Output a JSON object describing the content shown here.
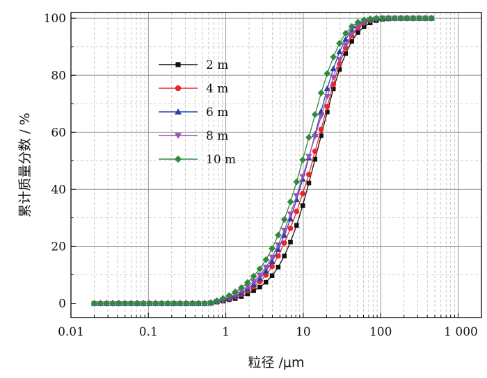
{
  "chart_data": {
    "type": "line",
    "xscale": "log",
    "xlabel": "粒径 /μm",
    "ylabel": "累计质量分数 / %",
    "xlim": [
      0.01,
      2000
    ],
    "ylim": [
      -5,
      102
    ],
    "x_ticks": [
      0.01,
      0.1,
      1,
      10,
      100,
      1000
    ],
    "x_tick_labels": [
      "0.01",
      "0.1",
      "1",
      "10",
      "100",
      "1 000"
    ],
    "y_ticks": [
      0,
      20,
      40,
      60,
      80,
      100
    ],
    "y_tick_labels": [
      "0",
      "20",
      "40",
      "60",
      "80",
      "100"
    ],
    "grid": true,
    "legend_position": "upper-left",
    "x_sample_start": 0.02,
    "x_sample_ratio": 1.2,
    "series": [
      {
        "name": "2 m",
        "color": "#111111",
        "marker": "square",
        "values": [
          0,
          0,
          0,
          0,
          0,
          0,
          0,
          0,
          0,
          0,
          0,
          0,
          0,
          0,
          0,
          0,
          0,
          0,
          0,
          0.1,
          0.4,
          0.8,
          1.2,
          1.7,
          2.4,
          3.3,
          4.4,
          5.7,
          7.4,
          9.7,
          12.7,
          16.6,
          21.5,
          27.3,
          34.3,
          42.2,
          50.5,
          58.8,
          67.1,
          75.2,
          82.0,
          87.6,
          91.9,
          95.0,
          97.0,
          98.4,
          99.2,
          99.6,
          99.8,
          100,
          100,
          100,
          100,
          100,
          100,
          100
        ]
      },
      {
        "name": "4 m",
        "color": "#e8262a",
        "marker": "circle",
        "values": [
          0,
          0,
          0,
          0,
          0,
          0,
          0,
          0,
          0,
          0,
          0,
          0,
          0,
          0,
          0,
          0,
          0,
          0,
          0,
          0.1,
          0.5,
          1.0,
          1.6,
          2.3,
          3.2,
          4.4,
          5.8,
          7.6,
          9.9,
          12.9,
          16.6,
          21.1,
          26.3,
          32.2,
          38.5,
          45.2,
          53.3,
          61.0,
          69.0,
          76.8,
          84.0,
          89.6,
          93.8,
          96.6,
          98.3,
          99.2,
          99.7,
          99.9,
          100,
          100,
          100,
          100,
          100,
          100,
          100,
          100
        ]
      },
      {
        "name": "6 m",
        "color": "#2b3fa6",
        "marker": "triangle-up",
        "values": [
          0,
          0,
          0,
          0,
          0,
          0,
          0,
          0,
          0,
          0,
          0,
          0,
          0,
          0,
          0,
          0,
          0,
          0,
          0,
          0.1,
          0.6,
          1.1,
          1.8,
          2.6,
          3.6,
          5.0,
          6.6,
          8.7,
          11.3,
          14.6,
          18.8,
          23.8,
          29.6,
          36.3,
          43.5,
          51.0,
          59.2,
          67.3,
          75.3,
          82.3,
          88.2,
          92.6,
          95.8,
          97.7,
          98.9,
          99.5,
          99.8,
          100,
          100,
          100,
          100,
          100,
          100,
          100,
          100,
          100
        ]
      },
      {
        "name": "8 m",
        "color": "#9a4fb5",
        "marker": "triangle-down",
        "values": [
          0,
          0,
          0,
          0,
          0,
          0,
          0,
          0,
          0,
          0,
          0,
          0,
          0,
          0,
          0,
          0,
          0,
          0,
          0,
          0.1,
          0.7,
          1.3,
          2.1,
          3.1,
          4.3,
          5.8,
          7.6,
          9.9,
          12.7,
          16.2,
          20.5,
          25.6,
          31.3,
          37.7,
          44.5,
          51.5,
          58.5,
          65.6,
          72.6,
          79.3,
          85.5,
          90.6,
          94.5,
          97.1,
          98.7,
          99.5,
          99.8,
          100,
          100,
          100,
          100,
          100,
          100,
          100,
          100,
          100
        ]
      },
      {
        "name": "10 m",
        "color": "#2f8a3a",
        "marker": "diamond",
        "values": [
          0,
          0,
          0,
          0,
          0,
          0,
          0,
          0,
          0,
          0,
          0,
          0,
          0,
          0,
          0,
          0,
          0,
          0,
          0,
          0.2,
          0.9,
          1.7,
          2.7,
          4.0,
          5.5,
          7.3,
          9.5,
          12.1,
          15.3,
          19.2,
          23.9,
          29.4,
          35.6,
          42.6,
          50.3,
          58.2,
          66.2,
          73.8,
          80.6,
          86.4,
          91.2,
          94.7,
          97.1,
          98.6,
          99.4,
          99.8,
          100,
          100,
          100,
          100,
          100,
          100,
          100,
          100,
          100,
          100
        ]
      }
    ]
  }
}
